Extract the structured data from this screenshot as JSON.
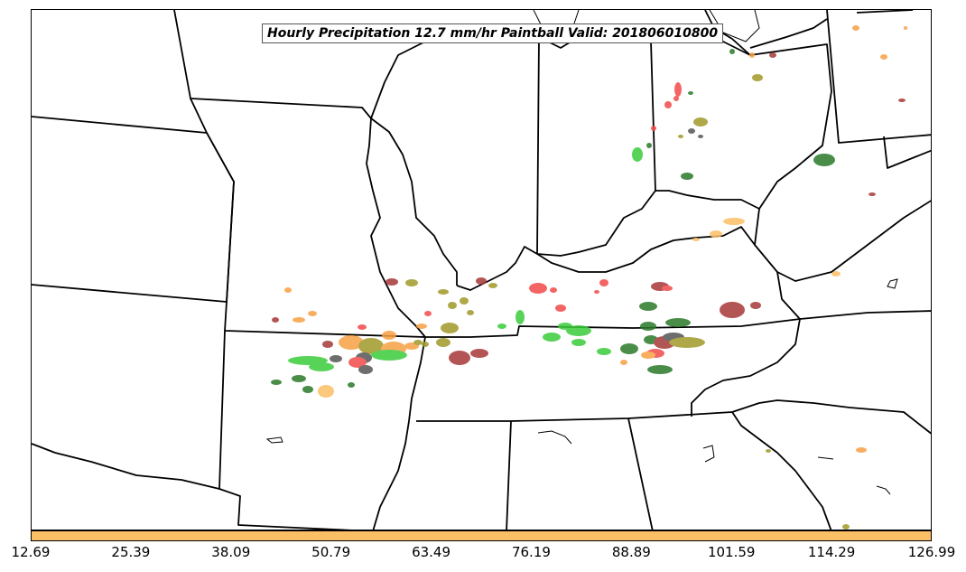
{
  "title": "Hourly Precipitation 12.7 mm/hr Paintball Valid: 201806010800",
  "colorbar": {
    "color": "#fbbf66",
    "ticks": [
      "12.69",
      "25.39",
      "38.09",
      "50.79",
      "63.49",
      "76.19",
      "88.89",
      "101.59",
      "114.29",
      "126.99"
    ]
  },
  "colors": {
    "red": "#f24a4a",
    "orange": "#f7a044",
    "light_orange": "#fbbf66",
    "dark_red": "#a83838",
    "olive": "#a09a2a",
    "green": "#3acc3a",
    "dark_green": "#2a7a2a",
    "gray": "#555555"
  }
}
